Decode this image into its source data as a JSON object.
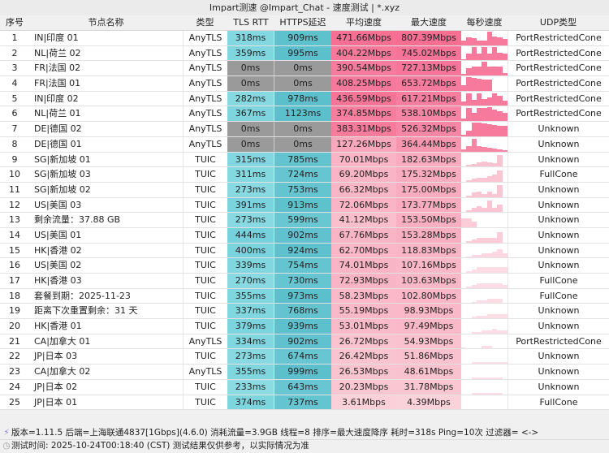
{
  "window": {
    "title": "Impart测速 @Impart_Chat - 速度测试 | *.xyz"
  },
  "table": {
    "columns": [
      "序号",
      "节点名称",
      "类型",
      "TLS RTT",
      "HTTPS延迟",
      "平均速度",
      "最大速度",
      "每秒速度",
      "UDP类型"
    ],
    "rows": [
      {
        "idx": "1",
        "name": "IN|印度 01",
        "type": "AnyTLS",
        "tls": "318ms",
        "https": "909ms",
        "avg": "471.66Mbps",
        "max": "807.39Mbps",
        "udp": "PortRestrictedCone",
        "spark": [
          0.3,
          0.55,
          0.5,
          0.35,
          0.3,
          0.95,
          0.6,
          0.55,
          0.45
        ]
      },
      {
        "idx": "2",
        "name": "NL|荷兰 02",
        "type": "AnyTLS",
        "tls": "359ms",
        "https": "995ms",
        "avg": "404.22Mbps",
        "max": "745.02Mbps",
        "udp": "PortRestrictedCone",
        "spark": [
          0.1,
          0.45,
          0.9,
          0.45,
          0.9,
          0.45,
          0.9,
          0.55,
          0.5
        ]
      },
      {
        "idx": "3",
        "name": "FR|法国 02",
        "type": "AnyTLS",
        "tls": "0ms",
        "https": "0ms",
        "avg": "390.54Mbps",
        "max": "727.13Mbps",
        "udp": "PortRestrictedCone",
        "spark": [
          0.1,
          0.5,
          0.6,
          0.6,
          0.95,
          0.65,
          0.65,
          0.65,
          0.15
        ]
      },
      {
        "idx": "4",
        "name": "FR|法国 01",
        "type": "AnyTLS",
        "tls": "0ms",
        "https": "0ms",
        "avg": "408.25Mbps",
        "max": "653.72Mbps",
        "udp": "PortRestrictedCone",
        "spark": [
          0.4,
          0.95,
          0.9,
          0.85,
          0.8,
          0.75,
          0.0,
          0.0,
          0.0
        ]
      },
      {
        "idx": "5",
        "name": "IN|印度 02",
        "type": "AnyTLS",
        "tls": "282ms",
        "https": "978ms",
        "avg": "436.59Mbps",
        "max": "617.21Mbps",
        "udp": "PortRestrictedCone",
        "spark": [
          0.3,
          0.9,
          0.4,
          0.9,
          0.5,
          0.6,
          0.9,
          0.7,
          0.35
        ]
      },
      {
        "idx": "6",
        "name": "NL|荷兰 01",
        "type": "AnyTLS",
        "tls": "367ms",
        "https": "1123ms",
        "avg": "374.85Mbps",
        "max": "538.10Mbps",
        "udp": "PortRestrictedCone",
        "spark": [
          0.2,
          0.9,
          0.6,
          0.9,
          0.9,
          0.95,
          0.8,
          0.7,
          0.6
        ]
      },
      {
        "idx": "7",
        "name": "DE|德国 02",
        "type": "AnyTLS",
        "tls": "0ms",
        "https": "0ms",
        "avg": "383.31Mbps",
        "max": "526.32Mbps",
        "udp": "Unknown",
        "spark": [
          0.1,
          0.4,
          0.95,
          0.95,
          0.9,
          0.85,
          0.8,
          0.75,
          0.7
        ]
      },
      {
        "idx": "8",
        "name": "DE|德国 01",
        "type": "AnyTLS",
        "tls": "0ms",
        "https": "0ms",
        "avg": "127.26Mbps",
        "max": "364.44Mbps",
        "udp": "Unknown",
        "spark": [
          0.15,
          0.35,
          0.9,
          0.35,
          0.3,
          0.25,
          0.2,
          0.15,
          0.1
        ]
      },
      {
        "idx": "9",
        "name": "SG|新加坡 01",
        "type": "TUIC",
        "tls": "315ms",
        "https": "785ms",
        "avg": "70.01Mbps",
        "max": "182.63Mbps",
        "udp": "Unknown",
        "spark": [
          0.0,
          0.1,
          0.2,
          0.3,
          0.35,
          0.3,
          0.25,
          0.8,
          0.0
        ]
      },
      {
        "idx": "10",
        "name": "SG|新加坡 03",
        "type": "TUIC",
        "tls": "311ms",
        "https": "724ms",
        "avg": "69.20Mbps",
        "max": "175.32Mbps",
        "udp": "FullCone",
        "spark": [
          0.0,
          0.1,
          0.2,
          0.3,
          0.3,
          0.4,
          0.5,
          0.8,
          0.0
        ]
      },
      {
        "idx": "11",
        "name": "SG|新加坡 02",
        "type": "TUIC",
        "tls": "273ms",
        "https": "753ms",
        "avg": "66.32Mbps",
        "max": "175.00Mbps",
        "udp": "Unknown",
        "spark": [
          0.0,
          0.1,
          0.3,
          0.4,
          0.2,
          0.4,
          0.2,
          0.8,
          0.0
        ]
      },
      {
        "idx": "12",
        "name": "US|美国 03",
        "type": "TUIC",
        "tls": "391ms",
        "https": "913ms",
        "avg": "72.06Mbps",
        "max": "173.77Mbps",
        "udp": "Unknown",
        "spark": [
          0.0,
          0.1,
          0.3,
          0.4,
          0.3,
          0.8,
          0.3,
          0.5,
          0.0
        ]
      },
      {
        "idx": "13",
        "name": "剩余流量：37.88 GB",
        "type": "TUIC",
        "tls": "273ms",
        "https": "599ms",
        "avg": "41.12Mbps",
        "max": "153.50Mbps",
        "udp": "Unknown",
        "spark": [
          0.6,
          0.6,
          0.4,
          0.0,
          0.0,
          0.0,
          0.0,
          0.0,
          0.0
        ]
      },
      {
        "idx": "14",
        "name": "US|美国 01",
        "type": "TUIC",
        "tls": "444ms",
        "https": "902ms",
        "avg": "67.76Mbps",
        "max": "153.28Mbps",
        "udp": "Unknown",
        "spark": [
          0.0,
          0.1,
          0.2,
          0.3,
          0.3,
          0.3,
          0.3,
          0.7,
          0.0
        ]
      },
      {
        "idx": "15",
        "name": "HK|香港 02",
        "type": "TUIC",
        "tls": "400ms",
        "https": "924ms",
        "avg": "62.70Mbps",
        "max": "118.83Mbps",
        "udp": "Unknown",
        "spark": [
          0.0,
          0.1,
          0.2,
          0.2,
          0.3,
          0.3,
          0.4,
          0.6,
          0.3
        ]
      },
      {
        "idx": "16",
        "name": "US|美国 02",
        "type": "TUIC",
        "tls": "339ms",
        "https": "754ms",
        "avg": "74.01Mbps",
        "max": "107.16Mbps",
        "udp": "Unknown",
        "spark": [
          0.0,
          0.1,
          0.2,
          0.4,
          0.4,
          0.4,
          0.4,
          0.4,
          0.4
        ]
      },
      {
        "idx": "17",
        "name": "HK|香港 03",
        "type": "TUIC",
        "tls": "270ms",
        "https": "730ms",
        "avg": "72.93Mbps",
        "max": "103.63Mbps",
        "udp": "FullCone",
        "spark": [
          0.0,
          0.1,
          0.2,
          0.3,
          0.3,
          0.3,
          0.3,
          0.3,
          0.2
        ]
      },
      {
        "idx": "18",
        "name": "套餐到期：2025-11-23",
        "type": "TUIC",
        "tls": "355ms",
        "https": "973ms",
        "avg": "58.23Mbps",
        "max": "102.80Mbps",
        "udp": "FullCone",
        "spark": [
          0.0,
          0.0,
          0.1,
          0.2,
          0.2,
          0.3,
          0.3,
          0.3,
          0.0
        ]
      },
      {
        "idx": "19",
        "name": "距离下次重置剩余：31 天",
        "type": "TUIC",
        "tls": "337ms",
        "https": "768ms",
        "avg": "55.19Mbps",
        "max": "98.93Mbps",
        "udp": "Unknown",
        "spark": [
          0.0,
          0.0,
          0.1,
          0.2,
          0.2,
          0.3,
          0.3,
          0.3,
          0.3
        ]
      },
      {
        "idx": "20",
        "name": "HK|香港 01",
        "type": "TUIC",
        "tls": "379ms",
        "https": "939ms",
        "avg": "53.01Mbps",
        "max": "97.49Mbps",
        "udp": "Unknown",
        "spark": [
          0.0,
          0.0,
          0.1,
          0.1,
          0.2,
          0.2,
          0.3,
          0.2,
          0.2
        ]
      },
      {
        "idx": "21",
        "name": "CA|加拿大 01",
        "type": "AnyTLS",
        "tls": "334ms",
        "https": "902ms",
        "avg": "26.72Mbps",
        "max": "54.93Mbps",
        "udp": "PortRestrictedCone",
        "spark": [
          0.1,
          0.0,
          0.0,
          0.0,
          0.2,
          0.2,
          0.0,
          0.0,
          0.0
        ]
      },
      {
        "idx": "22",
        "name": "JP|日本 03",
        "type": "TUIC",
        "tls": "273ms",
        "https": "674ms",
        "avg": "26.42Mbps",
        "max": "51.86Mbps",
        "udp": "Unknown",
        "spark": [
          0.0,
          0.0,
          0.1,
          0.1,
          0.1,
          0.1,
          0.1,
          0.1,
          0.1
        ]
      },
      {
        "idx": "23",
        "name": "CA|加拿大 02",
        "type": "AnyTLS",
        "tls": "355ms",
        "https": "999ms",
        "avg": "26.53Mbps",
        "max": "48.61Mbps",
        "udp": "Unknown",
        "spark": [
          0.0,
          0.0,
          0.1,
          0.1,
          0.1,
          0.1,
          0.1,
          0.1,
          0.0
        ]
      },
      {
        "idx": "24",
        "name": "JP|日本 02",
        "type": "TUIC",
        "tls": "233ms",
        "https": "643ms",
        "avg": "20.23Mbps",
        "max": "31.78Mbps",
        "udp": "Unknown",
        "spark": [
          0.0,
          0.0,
          0.1,
          0.1,
          0.1,
          0.1,
          0.1,
          0.1,
          0.0
        ]
      },
      {
        "idx": "25",
        "name": "JP|日本 01",
        "type": "TUIC",
        "tls": "374ms",
        "https": "737ms",
        "avg": "3.61Mbps",
        "max": "4.39Mbps",
        "udp": "FullCone",
        "spark": [
          0.0,
          0.0,
          0.0,
          0.0,
          0.0,
          0.0,
          0.0,
          0.0,
          0.0
        ]
      }
    ]
  },
  "footer": {
    "line1_icon": "plug-icon",
    "line1": "版本=1.11.5  后端=上海联通4837[1Gbps](4.6.0) 消耗流量=3.9GB  线程=8  排序=最大速度降序  耗时=318s  Ping=10次  过滤器= <->",
    "line2_icon": "clock-icon",
    "line2": "测试时间: 2025-10-24T00:18:40 (CST)  测试结果仅供参考，以实际情况为准"
  },
  "colors": {
    "tls_bg": "#6fd0da",
    "https_bg": "#5bc0cc",
    "zero_bg": "#9a9a9a",
    "speed_high": "#f66f93",
    "speed_low": "#fbd5dd",
    "spark": "#f77a9c"
  }
}
